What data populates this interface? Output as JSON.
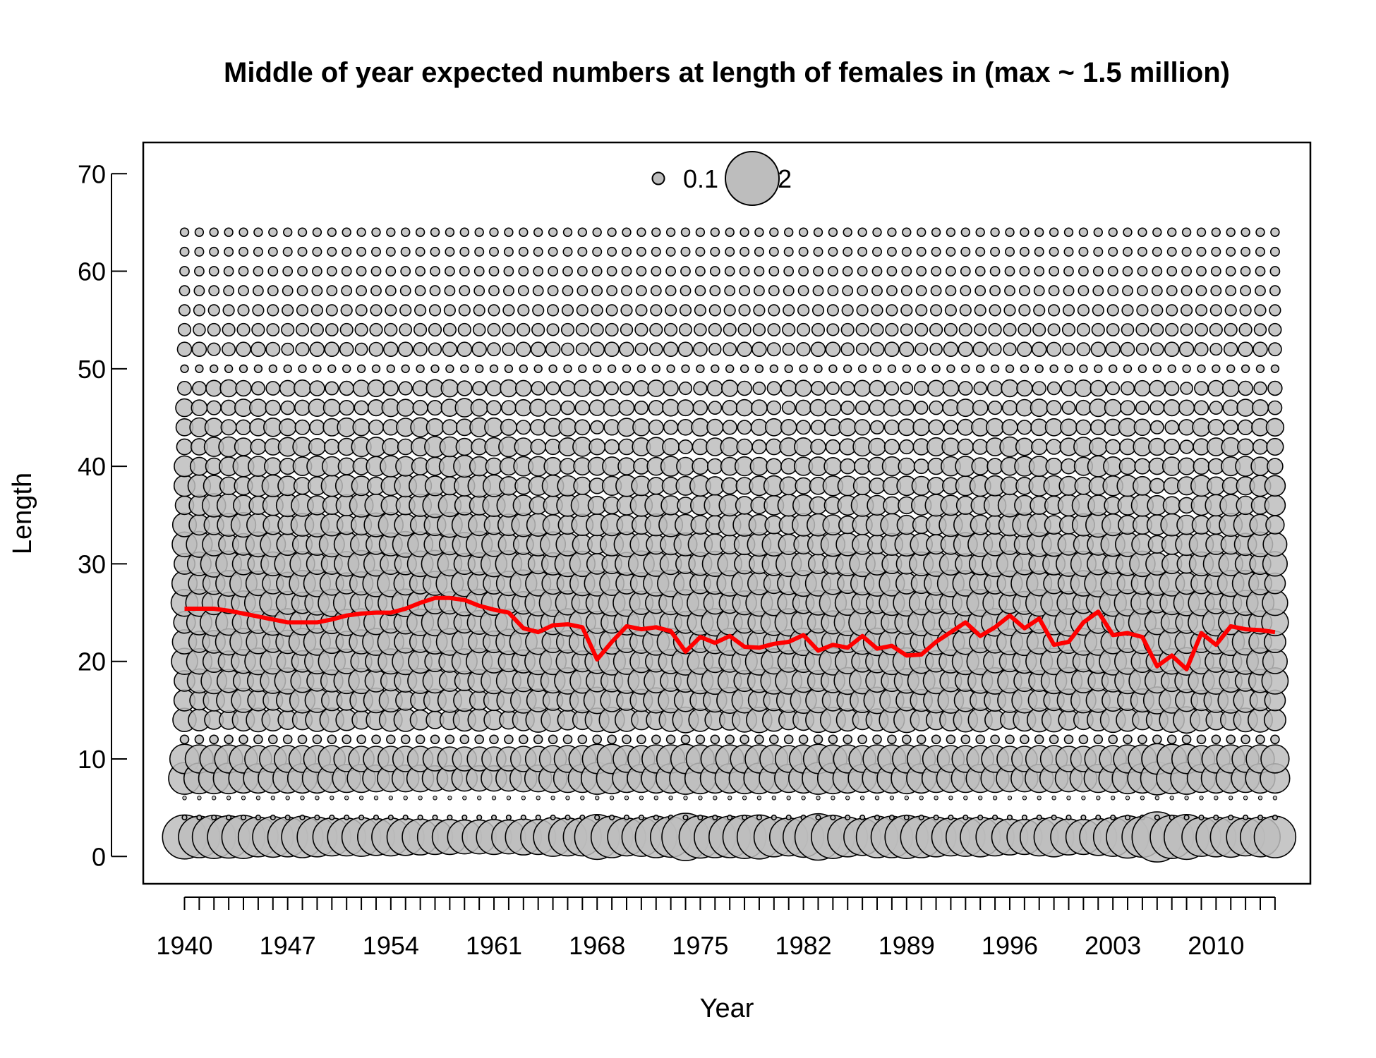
{
  "chart_data": {
    "type": "scatter",
    "title": "Middle of year expected numbers at length of females in (max ~ 1.5 million)",
    "xlabel": "Year",
    "ylabel": "Length",
    "xlim": [
      1937.2,
      2016.4
    ],
    "ylim": [
      -2.8,
      73.2
    ],
    "x_ticks": [
      1940,
      1947,
      1954,
      1961,
      1968,
      1975,
      1982,
      1989,
      1996,
      2003,
      2010
    ],
    "y_ticks": [
      0,
      10,
      20,
      30,
      40,
      50,
      60,
      70
    ],
    "years": [
      1940,
      2014
    ],
    "length_bins": [
      2,
      4,
      6,
      8,
      10,
      12,
      14,
      16,
      18,
      20,
      22,
      24,
      26,
      28,
      30,
      32,
      34,
      36,
      38,
      40,
      42,
      44,
      46,
      48,
      50,
      52,
      54,
      56,
      58,
      60,
      62,
      64
    ],
    "bubble_fill": "#bdbdbd",
    "bubble_stroke": "#000000",
    "legend": {
      "position": "top-center",
      "entries": [
        {
          "label": "0.1",
          "value": 0.1
        },
        {
          "label": "2",
          "value": 2
        }
      ]
    },
    "mean_length_series": {
      "color": "#ff0000",
      "x": [
        1940,
        1941,
        1942,
        1943,
        1944,
        1945,
        1946,
        1947,
        1948,
        1949,
        1950,
        1951,
        1952,
        1953,
        1954,
        1955,
        1956,
        1957,
        1958,
        1959,
        1960,
        1961,
        1962,
        1963,
        1964,
        1965,
        1966,
        1967,
        1968,
        1969,
        1970,
        1971,
        1972,
        1973,
        1974,
        1975,
        1976,
        1977,
        1978,
        1979,
        1980,
        1981,
        1982,
        1983,
        1984,
        1985,
        1986,
        1987,
        1988,
        1989,
        1990,
        1991,
        1992,
        1993,
        1994,
        1995,
        1996,
        1997,
        1998,
        1999,
        2000,
        2001,
        2002,
        2003,
        2004,
        2005,
        2006,
        2007,
        2008,
        2009,
        2010,
        2011,
        2012,
        2013,
        2014
      ],
      "y": [
        25.4,
        25.4,
        25.4,
        25.2,
        24.9,
        24.6,
        24.3,
        24.0,
        24.0,
        24.0,
        24.3,
        24.7,
        24.9,
        25.0,
        25.0,
        25.4,
        26.0,
        26.5,
        26.5,
        26.3,
        25.7,
        25.3,
        25.0,
        23.4,
        23.0,
        23.7,
        23.8,
        23.5,
        20.2,
        22.0,
        23.6,
        23.3,
        23.5,
        23.1,
        21.0,
        22.5,
        21.9,
        22.6,
        21.5,
        21.4,
        21.8,
        22.0,
        22.7,
        21.1,
        21.7,
        21.4,
        22.6,
        21.3,
        21.6,
        20.6,
        20.7,
        22.0,
        23.0,
        24.0,
        22.6,
        23.5,
        24.7,
        23.4,
        24.4,
        21.7,
        22.0,
        24.0,
        25.1,
        22.7,
        22.9,
        22.5,
        19.5,
        20.6,
        19.2,
        22.9,
        21.7,
        23.6,
        23.3,
        23.2,
        23.0
      ]
    },
    "bubbles": {
      "note_units": "relative numbers at length; bubble area proportional to value",
      "values_by_length": {
        "2": [
          1.35,
          1.2,
          1.3,
          1.25,
          1.3,
          1.1,
          1.15,
          1.1,
          1.2,
          1.1,
          1.0,
          1.0,
          1.05,
          0.95,
          1.0,
          0.95,
          0.9,
          0.85,
          0.85,
          0.8,
          0.8,
          0.85,
          0.8,
          0.9,
          0.85,
          1.05,
          1.0,
          1.0,
          1.4,
          1.2,
          1.0,
          1.05,
          1.2,
          1.15,
          1.55,
          1.25,
          1.2,
          1.2,
          1.3,
          1.35,
          1.1,
          1.0,
          1.15,
          1.5,
          1.3,
          1.1,
          0.95,
          1.2,
          1.2,
          1.3,
          1.2,
          1.1,
          1.0,
          1.05,
          1.1,
          1.0,
          0.9,
          0.85,
          1.0,
          1.1,
          0.9,
          0.85,
          0.95,
          1.05,
          1.25,
          1.15,
          1.75,
          1.3,
          1.4,
          1.05,
          1.1,
          1.15,
          1.0,
          1.1,
          1.2
        ],
        "8": [
          0.7,
          0.65,
          0.65,
          0.65,
          0.6,
          0.6,
          0.6,
          0.6,
          0.6,
          0.6,
          0.55,
          0.55,
          0.55,
          0.5,
          0.5,
          0.5,
          0.5,
          0.45,
          0.45,
          0.45,
          0.45,
          0.45,
          0.45,
          0.5,
          0.5,
          0.55,
          0.55,
          0.55,
          0.7,
          0.65,
          0.55,
          0.55,
          0.6,
          0.6,
          0.7,
          0.65,
          0.6,
          0.6,
          0.65,
          0.65,
          0.6,
          0.55,
          0.6,
          0.7,
          0.65,
          0.6,
          0.55,
          0.6,
          0.6,
          0.65,
          0.6,
          0.55,
          0.55,
          0.55,
          0.55,
          0.55,
          0.5,
          0.5,
          0.55,
          0.55,
          0.5,
          0.5,
          0.55,
          0.55,
          0.65,
          0.6,
          0.75,
          0.65,
          0.7,
          0.55,
          0.6,
          0.6,
          0.55,
          0.6,
          0.6
        ],
        "10": [
          0.6,
          0.55,
          0.55,
          0.55,
          0.55,
          0.5,
          0.5,
          0.5,
          0.5,
          0.5,
          0.5,
          0.45,
          0.45,
          0.45,
          0.45,
          0.45,
          0.45,
          0.4,
          0.4,
          0.4,
          0.4,
          0.4,
          0.4,
          0.45,
          0.45,
          0.5,
          0.5,
          0.5,
          0.6,
          0.6,
          0.5,
          0.5,
          0.55,
          0.55,
          0.6,
          0.55,
          0.55,
          0.55,
          0.55,
          0.55,
          0.55,
          0.5,
          0.55,
          0.6,
          0.55,
          0.55,
          0.5,
          0.55,
          0.55,
          0.55,
          0.55,
          0.5,
          0.5,
          0.5,
          0.5,
          0.5,
          0.45,
          0.45,
          0.5,
          0.5,
          0.45,
          0.45,
          0.5,
          0.5,
          0.55,
          0.55,
          0.65,
          0.6,
          0.6,
          0.5,
          0.55,
          0.55,
          0.5,
          0.55,
          0.55
        ]
      }
    }
  }
}
